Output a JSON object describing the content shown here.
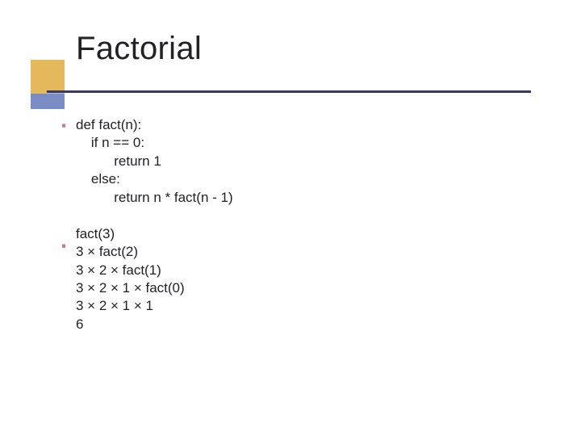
{
  "slide": {
    "title": "Factorial",
    "title_fontsize": 40,
    "title_color": "#222226",
    "accent_box_color": "#e6b85c",
    "accent_bar_color": "#7a8cc4",
    "rule_color": "#3a3a5a",
    "bullet_color": "#c77a8a",
    "background_color": "#ffffff",
    "body_fontsize": 17,
    "body_color": "#222226",
    "code_block": "def fact(n):\n    if n == 0:\n          return 1\n    else:\n          return n * fact(n - 1)",
    "trace_block": "fact(3)\n3 × fact(2)\n3 × 2 × fact(1)\n3 × 2 × 1 × fact(0)\n3 × 2 × 1 × 1\n6"
  }
}
